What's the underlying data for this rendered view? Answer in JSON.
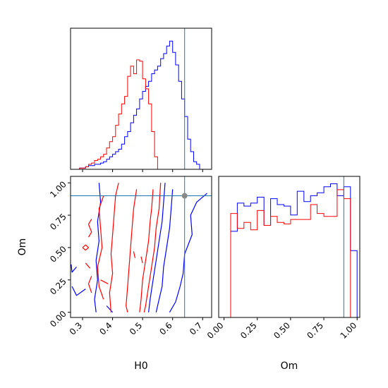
{
  "chart_data": {
    "type": "corner",
    "parameters": [
      "H0",
      "Om"
    ],
    "truth": {
      "H0": 0.64,
      "Om": 0.9
    },
    "colors": {
      "blue": "#0000ff",
      "red": "#ff0000",
      "truth": "#1f77b4"
    },
    "h0_hist": {
      "xlim": [
        0.26,
        0.73
      ],
      "ticks": [
        0.3,
        0.4,
        0.5,
        0.6,
        0.7
      ],
      "tick_labels": [
        "0.3",
        "0.4",
        "0.5",
        "0.6",
        "0.7"
      ],
      "bin_edges": [
        0.26,
        0.27,
        0.28,
        0.29,
        0.3,
        0.31,
        0.32,
        0.33,
        0.34,
        0.35,
        0.36,
        0.37,
        0.38,
        0.39,
        0.4,
        0.41,
        0.42,
        0.43,
        0.44,
        0.45,
        0.46,
        0.47,
        0.48,
        0.49,
        0.5,
        0.51,
        0.52,
        0.53,
        0.54,
        0.55,
        0.56,
        0.57,
        0.58,
        0.59,
        0.6,
        0.61,
        0.62,
        0.63,
        0.64,
        0.65,
        0.66,
        0.67,
        0.68,
        0.69,
        0.7
      ],
      "series": [
        {
          "color": "blue",
          "values": [
            0,
            0,
            0,
            1,
            1,
            2,
            3,
            3,
            4,
            4,
            5,
            6,
            8,
            10,
            12,
            14,
            16,
            20,
            26,
            30,
            37,
            43,
            48,
            56,
            62,
            66,
            70,
            76,
            79,
            82,
            88,
            92,
            98,
            102,
            93,
            83,
            70,
            56,
            42,
            24,
            14,
            6,
            4,
            0
          ]
        },
        {
          "color": "red",
          "values": [
            0,
            0,
            0,
            1,
            1,
            2,
            4,
            5,
            7,
            8,
            10,
            12,
            17,
            22,
            26,
            35,
            44,
            52,
            58,
            74,
            82,
            76,
            87,
            86,
            72,
            64,
            52,
            30,
            10,
            0,
            0,
            0,
            0,
            0,
            0,
            0,
            0,
            0,
            0,
            0,
            0,
            0,
            0,
            0
          ]
        }
      ]
    },
    "om_hist": {
      "xlim": [
        -0.04,
        1.02
      ],
      "ticks": [
        0.0,
        0.25,
        0.5,
        0.75,
        1.0
      ],
      "tick_labels": [
        "0.00",
        "0.25",
        "0.50",
        "0.75",
        "1.00"
      ],
      "bin_edges": [
        0.0,
        0.05,
        0.1,
        0.15,
        0.2,
        0.25,
        0.3,
        0.35,
        0.4,
        0.45,
        0.5,
        0.55,
        0.6,
        0.65,
        0.7,
        0.75,
        0.8,
        0.85,
        0.9,
        0.95,
        1.0
      ],
      "series": [
        {
          "color": "blue",
          "values": [
            0,
            58,
            77,
            75,
            77,
            81,
            62,
            80,
            76,
            75,
            69,
            85,
            78,
            82,
            84,
            88,
            90,
            82,
            88,
            45
          ]
        },
        {
          "color": "red",
          "values": [
            0,
            70,
            60,
            64,
            59,
            72,
            62,
            68,
            64,
            63,
            66,
            66,
            66,
            76,
            70,
            68,
            68,
            86,
            80,
            0
          ]
        }
      ]
    },
    "contour": {
      "xlim": [
        0.26,
        0.73
      ],
      "ylim": [
        -0.04,
        1.05
      ],
      "xticks": [
        0.3,
        0.4,
        0.5,
        0.6,
        0.7
      ],
      "xtick_labels": [
        "0.3",
        "0.4",
        "0.5",
        "0.6",
        "0.7"
      ],
      "yticks": [
        0.0,
        0.25,
        0.5,
        0.75,
        1.0
      ],
      "ytick_labels": [
        "0.00",
        "0.25",
        "0.50",
        "0.75",
        "1.00"
      ],
      "xlabel": "H0",
      "ylabel": "Om",
      "marker": {
        "x": 0.64,
        "y": 0.9
      },
      "lines": [
        {
          "color": "blue",
          "points": [
            [
              0.575,
              1.0
            ],
            [
              0.57,
              0.85
            ],
            [
              0.565,
              0.7
            ],
            [
              0.555,
              0.55
            ],
            [
              0.545,
              0.4
            ],
            [
              0.535,
              0.25
            ],
            [
              0.525,
              0.1
            ],
            [
              0.52,
              0.0
            ]
          ]
        },
        {
          "color": "blue",
          "points": [
            [
              0.6,
              0.95
            ],
            [
              0.595,
              0.8
            ],
            [
              0.59,
              0.65
            ],
            [
              0.58,
              0.5
            ],
            [
              0.57,
              0.35
            ],
            [
              0.565,
              0.2
            ],
            [
              0.55,
              0.05
            ],
            [
              0.545,
              0.0
            ]
          ]
        },
        {
          "color": "blue",
          "points": [
            [
              0.715,
              0.92
            ],
            [
              0.68,
              0.85
            ],
            [
              0.66,
              0.75
            ],
            [
              0.665,
              0.6
            ],
            [
              0.64,
              0.45
            ],
            [
              0.635,
              0.3
            ],
            [
              0.625,
              0.2
            ],
            [
              0.61,
              0.08
            ],
            [
              0.59,
              0.0
            ]
          ]
        },
        {
          "color": "blue",
          "points": [
            [
              0.355,
              1.0
            ],
            [
              0.36,
              0.85
            ],
            [
              0.35,
              0.7
            ],
            [
              0.355,
              0.55
            ],
            [
              0.345,
              0.4
            ],
            [
              0.35,
              0.25
            ],
            [
              0.34,
              0.1
            ],
            [
              0.345,
              0.0
            ]
          ]
        },
        {
          "color": "blue",
          "points": [
            [
              0.31,
              0.18
            ],
            [
              0.28,
              0.13
            ],
            [
              0.265,
              0.2
            ]
          ]
        },
        {
          "color": "blue",
          "points": [
            [
              0.28,
              0.35
            ],
            [
              0.265,
              0.31
            ],
            [
              0.262,
              0.37
            ]
          ]
        },
        {
          "color": "blue",
          "points": [
            [
              0.38,
              0.05
            ],
            [
              0.4,
              0.0
            ]
          ]
        },
        {
          "color": "red",
          "points": [
            [
              0.535,
              0.95
            ],
            [
              0.53,
              0.8
            ],
            [
              0.525,
              0.7
            ],
            [
              0.52,
              0.55
            ],
            [
              0.51,
              0.4
            ],
            [
              0.5,
              0.25
            ],
            [
              0.495,
              0.1
            ],
            [
              0.49,
              0.0
            ]
          ]
        },
        {
          "color": "red",
          "points": [
            [
              0.56,
              1.0
            ],
            [
              0.555,
              0.8
            ],
            [
              0.545,
              0.65
            ],
            [
              0.54,
              0.5
            ],
            [
              0.53,
              0.35
            ],
            [
              0.52,
              0.2
            ],
            [
              0.51,
              0.05
            ],
            [
              0.505,
              0.0
            ]
          ]
        },
        {
          "color": "red",
          "points": [
            [
              0.48,
              0.95
            ],
            [
              0.47,
              0.8
            ],
            [
              0.465,
              0.65
            ],
            [
              0.46,
              0.5
            ],
            [
              0.455,
              0.35
            ],
            [
              0.45,
              0.2
            ],
            [
              0.445,
              0.05
            ],
            [
              0.45,
              0.0
            ]
          ]
        },
        {
          "color": "red",
          "points": [
            [
              0.42,
              1.0
            ],
            [
              0.41,
              0.9
            ],
            [
              0.405,
              0.75
            ],
            [
              0.4,
              0.6
            ],
            [
              0.395,
              0.45
            ],
            [
              0.4,
              0.3
            ],
            [
              0.39,
              0.15
            ],
            [
              0.395,
              0.0
            ]
          ]
        },
        {
          "color": "red",
          "points": [
            [
              0.37,
              0.9
            ],
            [
              0.355,
              0.8
            ],
            [
              0.36,
              0.65
            ],
            [
              0.365,
              0.5
            ],
            [
              0.35,
              0.35
            ],
            [
              0.355,
              0.2
            ],
            [
              0.37,
              0.1
            ]
          ]
        },
        {
          "color": "red",
          "points": [
            [
              0.33,
              0.72
            ],
            [
              0.32,
              0.68
            ],
            [
              0.33,
              0.62
            ],
            [
              0.32,
              0.58
            ]
          ]
        },
        {
          "color": "red",
          "points": [
            [
              0.33,
              0.28
            ],
            [
              0.32,
              0.22
            ],
            [
              0.33,
              0.15
            ]
          ]
        },
        {
          "color": "red",
          "points": [
            [
              0.3,
              0.5
            ],
            [
              0.31,
              0.48
            ],
            [
              0.32,
              0.5
            ],
            [
              0.31,
              0.52
            ],
            [
              0.3,
              0.5
            ]
          ]
        },
        {
          "color": "red",
          "points": [
            [
              0.31,
              0.38
            ],
            [
              0.325,
              0.34
            ]
          ]
        },
        {
          "color": "red",
          "points": [
            [
              0.36,
              0.25
            ],
            [
              0.385,
              0.22
            ]
          ]
        },
        {
          "color": "red",
          "points": [
            [
              0.47,
              0.47
            ],
            [
              0.475,
              0.42
            ]
          ]
        },
        {
          "color": "red",
          "points": [
            [
              0.495,
              0.43
            ],
            [
              0.5,
              0.38
            ]
          ]
        }
      ]
    }
  }
}
